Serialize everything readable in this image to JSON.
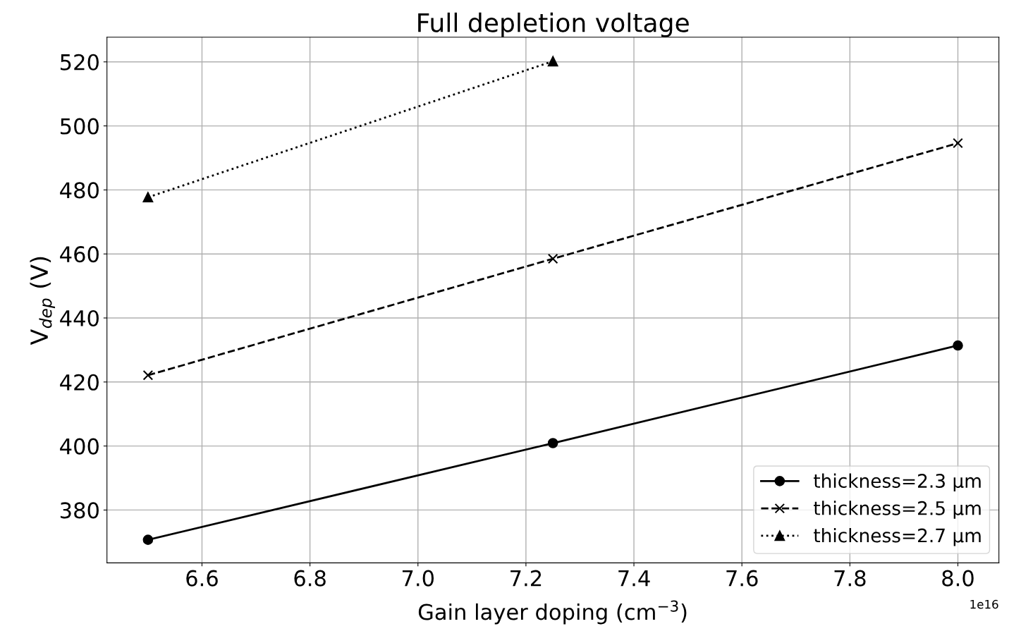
{
  "chart_data": {
    "type": "line",
    "title": "Full depletion voltage",
    "xlabel": "Gain layer doping (cm$^{−3}$)",
    "ylabel": "V$_{dep}$ (V)",
    "x": [
      6.5,
      7.25,
      8.0
    ],
    "series": [
      {
        "name": "thickness=2.3 μm",
        "color": "#000000",
        "values": [
          370.7,
          400.9,
          431.4
        ],
        "marker": "circle",
        "line_style": "solid"
      },
      {
        "name": "thickness=2.5 μm",
        "color": "#000000",
        "values": [
          422.1,
          458.5,
          494.6
        ],
        "marker": "cross",
        "line_style": "dashed"
      },
      {
        "name": "thickness=2.7 μm",
        "color": "#000000",
        "values": [
          477.7,
          520.2,
          null
        ],
        "marker": "triangle",
        "line_style": "dotted"
      }
    ],
    "xlim": [
      6.424,
      8.076
    ],
    "xticks": [
      6.6,
      6.8,
      {
        "value": 7.0,
        "label": "7.0"
      },
      7.2,
      7.4,
      7.6,
      7.8,
      {
        "value": 8.0,
        "label": "8.0"
      }
    ],
    "ylim": [
      363.5,
      527.7
    ],
    "yticks": [
      380,
      400,
      420,
      440,
      460,
      480,
      500,
      520
    ],
    "annotations": [
      "1e16"
    ],
    "grid": true,
    "legend": "lower right"
  }
}
